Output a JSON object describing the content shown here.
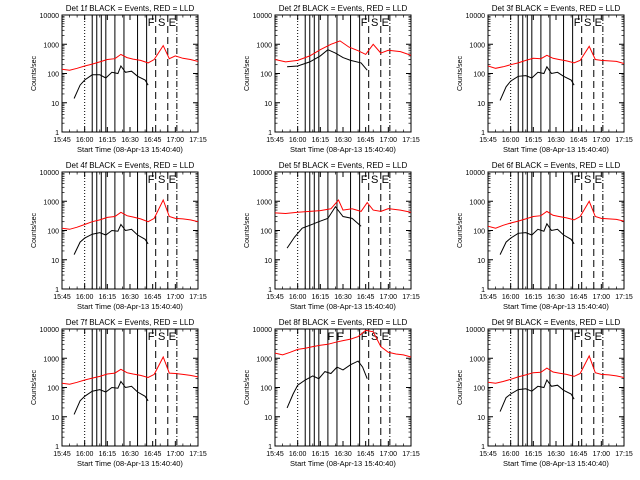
{
  "chart_data": [
    {
      "type": "line",
      "title": "Det 1f BLACK = Events, RED = LLD",
      "xlabel": "Start Time (08-Apr-13 15:40:40)",
      "ylabel": "Counts/sec",
      "yscale": "log",
      "ylim": [
        1,
        10000
      ],
      "xlim": [
        "15:45",
        "17:15"
      ],
      "x_tick_labels": [
        "15:45",
        "16:00",
        "16:15",
        "16:30",
        "16:45",
        "17:00",
        "17:15"
      ],
      "y_tick_labels": [
        "1",
        "10",
        "100",
        "1000",
        "10000"
      ],
      "markers": [
        "F",
        "S",
        "E"
      ],
      "series": [
        {
          "name": "Events",
          "color": "#000000",
          "x": [
            "15:53",
            "15:57",
            "16:00",
            "16:05",
            "16:10",
            "16:14",
            "16:18",
            "16:22",
            "16:24",
            "16:27",
            "16:31",
            "16:35",
            "16:40",
            "16:42"
          ],
          "values": [
            14,
            40,
            60,
            90,
            90,
            70,
            110,
            100,
            180,
            110,
            120,
            80,
            60,
            40
          ]
        },
        {
          "name": "LLD",
          "color": "#ff0000",
          "x": [
            "15:45",
            "15:50",
            "15:55",
            "16:00",
            "16:05",
            "16:10",
            "16:15",
            "16:20",
            "16:24",
            "16:28",
            "16:32",
            "16:37",
            "16:42",
            "16:46",
            "16:52",
            "16:56",
            "17:00",
            "17:05",
            "17:10",
            "17:15"
          ],
          "values": [
            140,
            130,
            150,
            180,
            210,
            250,
            300,
            320,
            450,
            350,
            310,
            280,
            230,
            300,
            900,
            320,
            400,
            330,
            300,
            260
          ]
        }
      ]
    },
    {
      "type": "line",
      "title": "Det 2f BLACK = Events, RED = LLD",
      "xlabel": "Start Time (08-Apr-13 15:40:40)",
      "ylabel": "Counts/sec",
      "yscale": "log",
      "ylim": [
        1,
        10000
      ],
      "xlim": [
        "15:45",
        "17:15"
      ],
      "x_tick_labels": [
        "15:45",
        "16:00",
        "16:15",
        "16:30",
        "16:45",
        "17:00",
        "17:15"
      ],
      "y_tick_labels": [
        "1",
        "10",
        "100",
        "1000",
        "10000"
      ],
      "markers": [
        "F",
        "S",
        "E"
      ],
      "series": [
        {
          "name": "Events",
          "color": "#000000",
          "x": [
            "15:53",
            "16:00",
            "16:08",
            "16:15",
            "16:20",
            "16:25",
            "16:30",
            "16:35",
            "16:42",
            "16:46"
          ],
          "values": [
            170,
            180,
            250,
            400,
            650,
            500,
            350,
            280,
            230,
            130
          ]
        },
        {
          "name": "LLD",
          "color": "#ff0000",
          "x": [
            "15:45",
            "15:52",
            "16:00",
            "16:08",
            "16:15",
            "16:22",
            "16:28",
            "16:34",
            "16:40",
            "16:45",
            "16:50",
            "16:55",
            "17:00",
            "17:08",
            "17:15"
          ],
          "values": [
            300,
            250,
            280,
            400,
            650,
            1000,
            1300,
            800,
            600,
            450,
            1000,
            500,
            620,
            560,
            420
          ]
        }
      ]
    },
    {
      "type": "line",
      "title": "Det 3f BLACK = Events, RED = LLD",
      "xlabel": "Start Time (08-Apr-13 15:40:40)",
      "ylabel": "Counts/sec",
      "yscale": "log",
      "ylim": [
        1,
        10000
      ],
      "xlim": [
        "15:45",
        "17:15"
      ],
      "x_tick_labels": [
        "15:45",
        "16:00",
        "16:15",
        "16:30",
        "16:45",
        "17:00",
        "17:15"
      ],
      "y_tick_labels": [
        "1",
        "10",
        "100",
        "1000",
        "10000"
      ],
      "markers": [
        "F",
        "S",
        "E"
      ],
      "series": [
        {
          "name": "Events",
          "color": "#000000",
          "x": [
            "15:53",
            "15:57",
            "16:00",
            "16:05",
            "16:10",
            "16:14",
            "16:18",
            "16:22",
            "16:24",
            "16:27",
            "16:31",
            "16:35",
            "16:40",
            "16:42"
          ],
          "values": [
            12,
            35,
            55,
            80,
            85,
            70,
            110,
            100,
            170,
            100,
            110,
            80,
            60,
            40
          ]
        },
        {
          "name": "LLD",
          "color": "#ff0000",
          "x": [
            "15:45",
            "15:50",
            "15:55",
            "16:00",
            "16:05",
            "16:10",
            "16:15",
            "16:20",
            "16:24",
            "16:28",
            "16:32",
            "16:37",
            "16:42",
            "16:46",
            "16:52",
            "16:56",
            "17:00",
            "17:05",
            "17:10",
            "17:15"
          ],
          "values": [
            180,
            150,
            170,
            200,
            230,
            280,
            330,
            320,
            420,
            330,
            300,
            270,
            230,
            280,
            850,
            300,
            280,
            270,
            260,
            220
          ]
        }
      ]
    },
    {
      "type": "line",
      "title": "Det 4f BLACK = Events, RED = LLD",
      "xlabel": "Start Time (08-Apr-13 15:40:40)",
      "ylabel": "Counts/sec",
      "yscale": "log",
      "ylim": [
        1,
        10000
      ],
      "xlim": [
        "15:45",
        "17:15"
      ],
      "x_tick_labels": [
        "15:45",
        "16:00",
        "16:15",
        "16:30",
        "16:45",
        "17:00",
        "17:15"
      ],
      "y_tick_labels": [
        "1",
        "10",
        "100",
        "1000",
        "10000"
      ],
      "markers": [
        "F",
        "S",
        "E"
      ],
      "series": [
        {
          "name": "Events",
          "color": "#000000",
          "x": [
            "15:53",
            "15:57",
            "16:00",
            "16:05",
            "16:10",
            "16:14",
            "16:18",
            "16:22",
            "16:24",
            "16:27",
            "16:31",
            "16:35",
            "16:40",
            "16:42"
          ],
          "values": [
            15,
            40,
            55,
            75,
            85,
            70,
            100,
            95,
            160,
            100,
            110,
            70,
            50,
            35
          ]
        },
        {
          "name": "LLD",
          "color": "#ff0000",
          "x": [
            "15:45",
            "15:50",
            "15:55",
            "16:00",
            "16:05",
            "16:10",
            "16:15",
            "16:20",
            "16:24",
            "16:28",
            "16:32",
            "16:37",
            "16:42",
            "16:46",
            "16:52",
            "16:56",
            "17:00",
            "17:05",
            "17:10",
            "17:15"
          ],
          "values": [
            120,
            110,
            130,
            160,
            200,
            230,
            280,
            300,
            420,
            320,
            290,
            250,
            200,
            260,
            1100,
            300,
            260,
            250,
            230,
            200
          ]
        }
      ]
    },
    {
      "type": "line",
      "title": "Det 5f BLACK = Events, RED = LLD",
      "xlabel": "Start Time (08-Apr-13 15:40:40)",
      "ylabel": "Counts/sec",
      "yscale": "log",
      "ylim": [
        1,
        10000
      ],
      "xlim": [
        "15:45",
        "17:15"
      ],
      "x_tick_labels": [
        "15:45",
        "16:00",
        "16:15",
        "16:30",
        "16:45",
        "17:00",
        "17:15"
      ],
      "y_tick_labels": [
        "1",
        "10",
        "100",
        "1000",
        "10000"
      ],
      "markers": [
        "F",
        "S",
        "E"
      ],
      "series": [
        {
          "name": "Events",
          "color": "#000000",
          "x": [
            "15:53",
            "15:58",
            "16:03",
            "16:08",
            "16:14",
            "16:20",
            "16:25",
            "16:30",
            "16:36",
            "16:42"
          ],
          "values": [
            25,
            60,
            120,
            150,
            200,
            260,
            650,
            300,
            260,
            140
          ]
        },
        {
          "name": "LLD",
          "color": "#ff0000",
          "x": [
            "15:45",
            "15:52",
            "16:00",
            "16:08",
            "16:15",
            "16:22",
            "16:27",
            "16:30",
            "16:36",
            "16:42",
            "16:46",
            "16:50",
            "16:55",
            "17:00",
            "17:08",
            "17:15"
          ],
          "values": [
            400,
            380,
            420,
            450,
            480,
            550,
            1100,
            500,
            550,
            450,
            900,
            500,
            450,
            560,
            500,
            420
          ]
        }
      ]
    },
    {
      "type": "line",
      "title": "Det 6f BLACK = Events, RED = LLD",
      "xlabel": "Start Time (08-Apr-13 15:40:40)",
      "ylabel": "Counts/sec",
      "yscale": "log",
      "ylim": [
        1,
        10000
      ],
      "xlim": [
        "15:45",
        "17:15"
      ],
      "x_tick_labels": [
        "15:45",
        "16:00",
        "16:15",
        "16:30",
        "16:45",
        "17:00",
        "17:15"
      ],
      "y_tick_labels": [
        "1",
        "10",
        "100",
        "1000",
        "10000"
      ],
      "markers": [
        "F",
        "S",
        "E"
      ],
      "series": [
        {
          "name": "Events",
          "color": "#000000",
          "x": [
            "15:53",
            "15:57",
            "16:00",
            "16:05",
            "16:10",
            "16:14",
            "16:18",
            "16:22",
            "16:24",
            "16:27",
            "16:31",
            "16:35",
            "16:40",
            "16:42"
          ],
          "values": [
            15,
            40,
            55,
            80,
            85,
            70,
            110,
            95,
            170,
            100,
            110,
            70,
            50,
            35
          ]
        },
        {
          "name": "LLD",
          "color": "#ff0000",
          "x": [
            "15:45",
            "15:50",
            "15:55",
            "16:00",
            "16:05",
            "16:10",
            "16:15",
            "16:20",
            "16:24",
            "16:28",
            "16:32",
            "16:37",
            "16:42",
            "16:46",
            "16:52",
            "16:56",
            "17:00",
            "17:05",
            "17:10",
            "17:15"
          ],
          "values": [
            140,
            120,
            150,
            180,
            210,
            250,
            300,
            320,
            450,
            330,
            300,
            270,
            230,
            300,
            1000,
            300,
            260,
            250,
            240,
            210
          ]
        }
      ]
    },
    {
      "type": "line",
      "title": "Det 7f BLACK = Events, RED = LLD",
      "xlabel": "Start Time (08-Apr-13 15:40:40)",
      "ylabel": "Counts/sec",
      "yscale": "log",
      "ylim": [
        1,
        10000
      ],
      "xlim": [
        "15:45",
        "17:15"
      ],
      "x_tick_labels": [
        "15:45",
        "16:00",
        "16:15",
        "16:30",
        "16:45",
        "17:00",
        "17:15"
      ],
      "y_tick_labels": [
        "1",
        "10",
        "100",
        "1000",
        "10000"
      ],
      "markers": [
        "F",
        "S",
        "E"
      ],
      "series": [
        {
          "name": "Events",
          "color": "#000000",
          "x": [
            "15:53",
            "15:57",
            "16:00",
            "16:05",
            "16:10",
            "16:14",
            "16:18",
            "16:22",
            "16:24",
            "16:27",
            "16:31",
            "16:35",
            "16:40",
            "16:42"
          ],
          "values": [
            12,
            35,
            50,
            75,
            85,
            70,
            100,
            95,
            160,
            100,
            110,
            70,
            50,
            35
          ]
        },
        {
          "name": "LLD",
          "color": "#ff0000",
          "x": [
            "15:45",
            "15:50",
            "15:55",
            "16:00",
            "16:05",
            "16:10",
            "16:15",
            "16:20",
            "16:24",
            "16:28",
            "16:32",
            "16:37",
            "16:42",
            "16:46",
            "16:52",
            "16:56",
            "17:00",
            "17:05",
            "17:10",
            "17:15"
          ],
          "values": [
            140,
            130,
            150,
            180,
            210,
            240,
            290,
            310,
            420,
            320,
            290,
            260,
            220,
            280,
            1100,
            310,
            300,
            280,
            260,
            230
          ]
        }
      ]
    },
    {
      "type": "line",
      "title": "Det 8f BLACK = Events, RED = LLD",
      "xlabel": "Start Time (08-Apr-13 15:40:40)",
      "ylabel": "Counts/sec",
      "yscale": "log",
      "ylim": [
        1,
        10000
      ],
      "xlim": [
        "15:45",
        "17:15"
      ],
      "x_tick_labels": [
        "15:45",
        "16:00",
        "16:15",
        "16:30",
        "16:45",
        "17:00",
        "17:15"
      ],
      "y_tick_labels": [
        "1",
        "10",
        "100",
        "1000",
        "10000"
      ],
      "markers": [
        "F",
        "F",
        "F",
        "S",
        "E"
      ],
      "series": [
        {
          "name": "Events",
          "color": "#000000",
          "x": [
            "15:53",
            "15:57",
            "16:00",
            "16:05",
            "16:10",
            "16:14",
            "16:18",
            "16:22",
            "16:26",
            "16:30",
            "16:35",
            "16:40",
            "16:43",
            "16:46"
          ],
          "values": [
            20,
            60,
            120,
            180,
            250,
            200,
            350,
            300,
            500,
            400,
            600,
            800,
            500,
            200
          ]
        },
        {
          "name": "LLD",
          "color": "#ff0000",
          "x": [
            "15:45",
            "15:50",
            "15:55",
            "16:00",
            "16:05",
            "16:10",
            "16:15",
            "16:20",
            "16:25",
            "16:30",
            "16:35",
            "16:40",
            "16:45",
            "16:50",
            "16:55",
            "17:00",
            "17:05",
            "17:10",
            "17:15"
          ],
          "values": [
            1500,
            1300,
            1600,
            2000,
            2200,
            2500,
            2800,
            3000,
            3500,
            4000,
            4500,
            5500,
            9000,
            8000,
            2500,
            1600,
            1400,
            1300,
            1100
          ]
        }
      ]
    },
    {
      "type": "line",
      "title": "Det 9f BLACK = Events, RED = LLD",
      "xlabel": "Start Time (08-Apr-13 15:40:40)",
      "ylabel": "Counts/sec",
      "yscale": "log",
      "ylim": [
        1,
        10000
      ],
      "xlim": [
        "15:45",
        "17:15"
      ],
      "x_tick_labels": [
        "15:45",
        "16:00",
        "16:15",
        "16:30",
        "16:45",
        "17:00",
        "17:15"
      ],
      "y_tick_labels": [
        "1",
        "10",
        "100",
        "1000",
        "10000"
      ],
      "markers": [
        "F",
        "S",
        "E"
      ],
      "series": [
        {
          "name": "Events",
          "color": "#000000",
          "x": [
            "15:53",
            "15:57",
            "16:00",
            "16:05",
            "16:10",
            "16:14",
            "16:18",
            "16:22",
            "16:24",
            "16:27",
            "16:31",
            "16:35",
            "16:40",
            "16:42"
          ],
          "values": [
            15,
            45,
            60,
            85,
            90,
            75,
            110,
            100,
            180,
            110,
            120,
            80,
            60,
            40
          ]
        },
        {
          "name": "LLD",
          "color": "#ff0000",
          "x": [
            "15:45",
            "15:50",
            "15:55",
            "16:00",
            "16:05",
            "16:10",
            "16:15",
            "16:20",
            "16:24",
            "16:28",
            "16:32",
            "16:37",
            "16:42",
            "16:46",
            "16:52",
            "16:56",
            "17:00",
            "17:05",
            "17:10",
            "17:15"
          ],
          "values": [
            150,
            140,
            160,
            190,
            230,
            270,
            320,
            330,
            460,
            340,
            310,
            280,
            240,
            300,
            1200,
            320,
            280,
            270,
            250,
            220
          ]
        }
      ]
    }
  ]
}
